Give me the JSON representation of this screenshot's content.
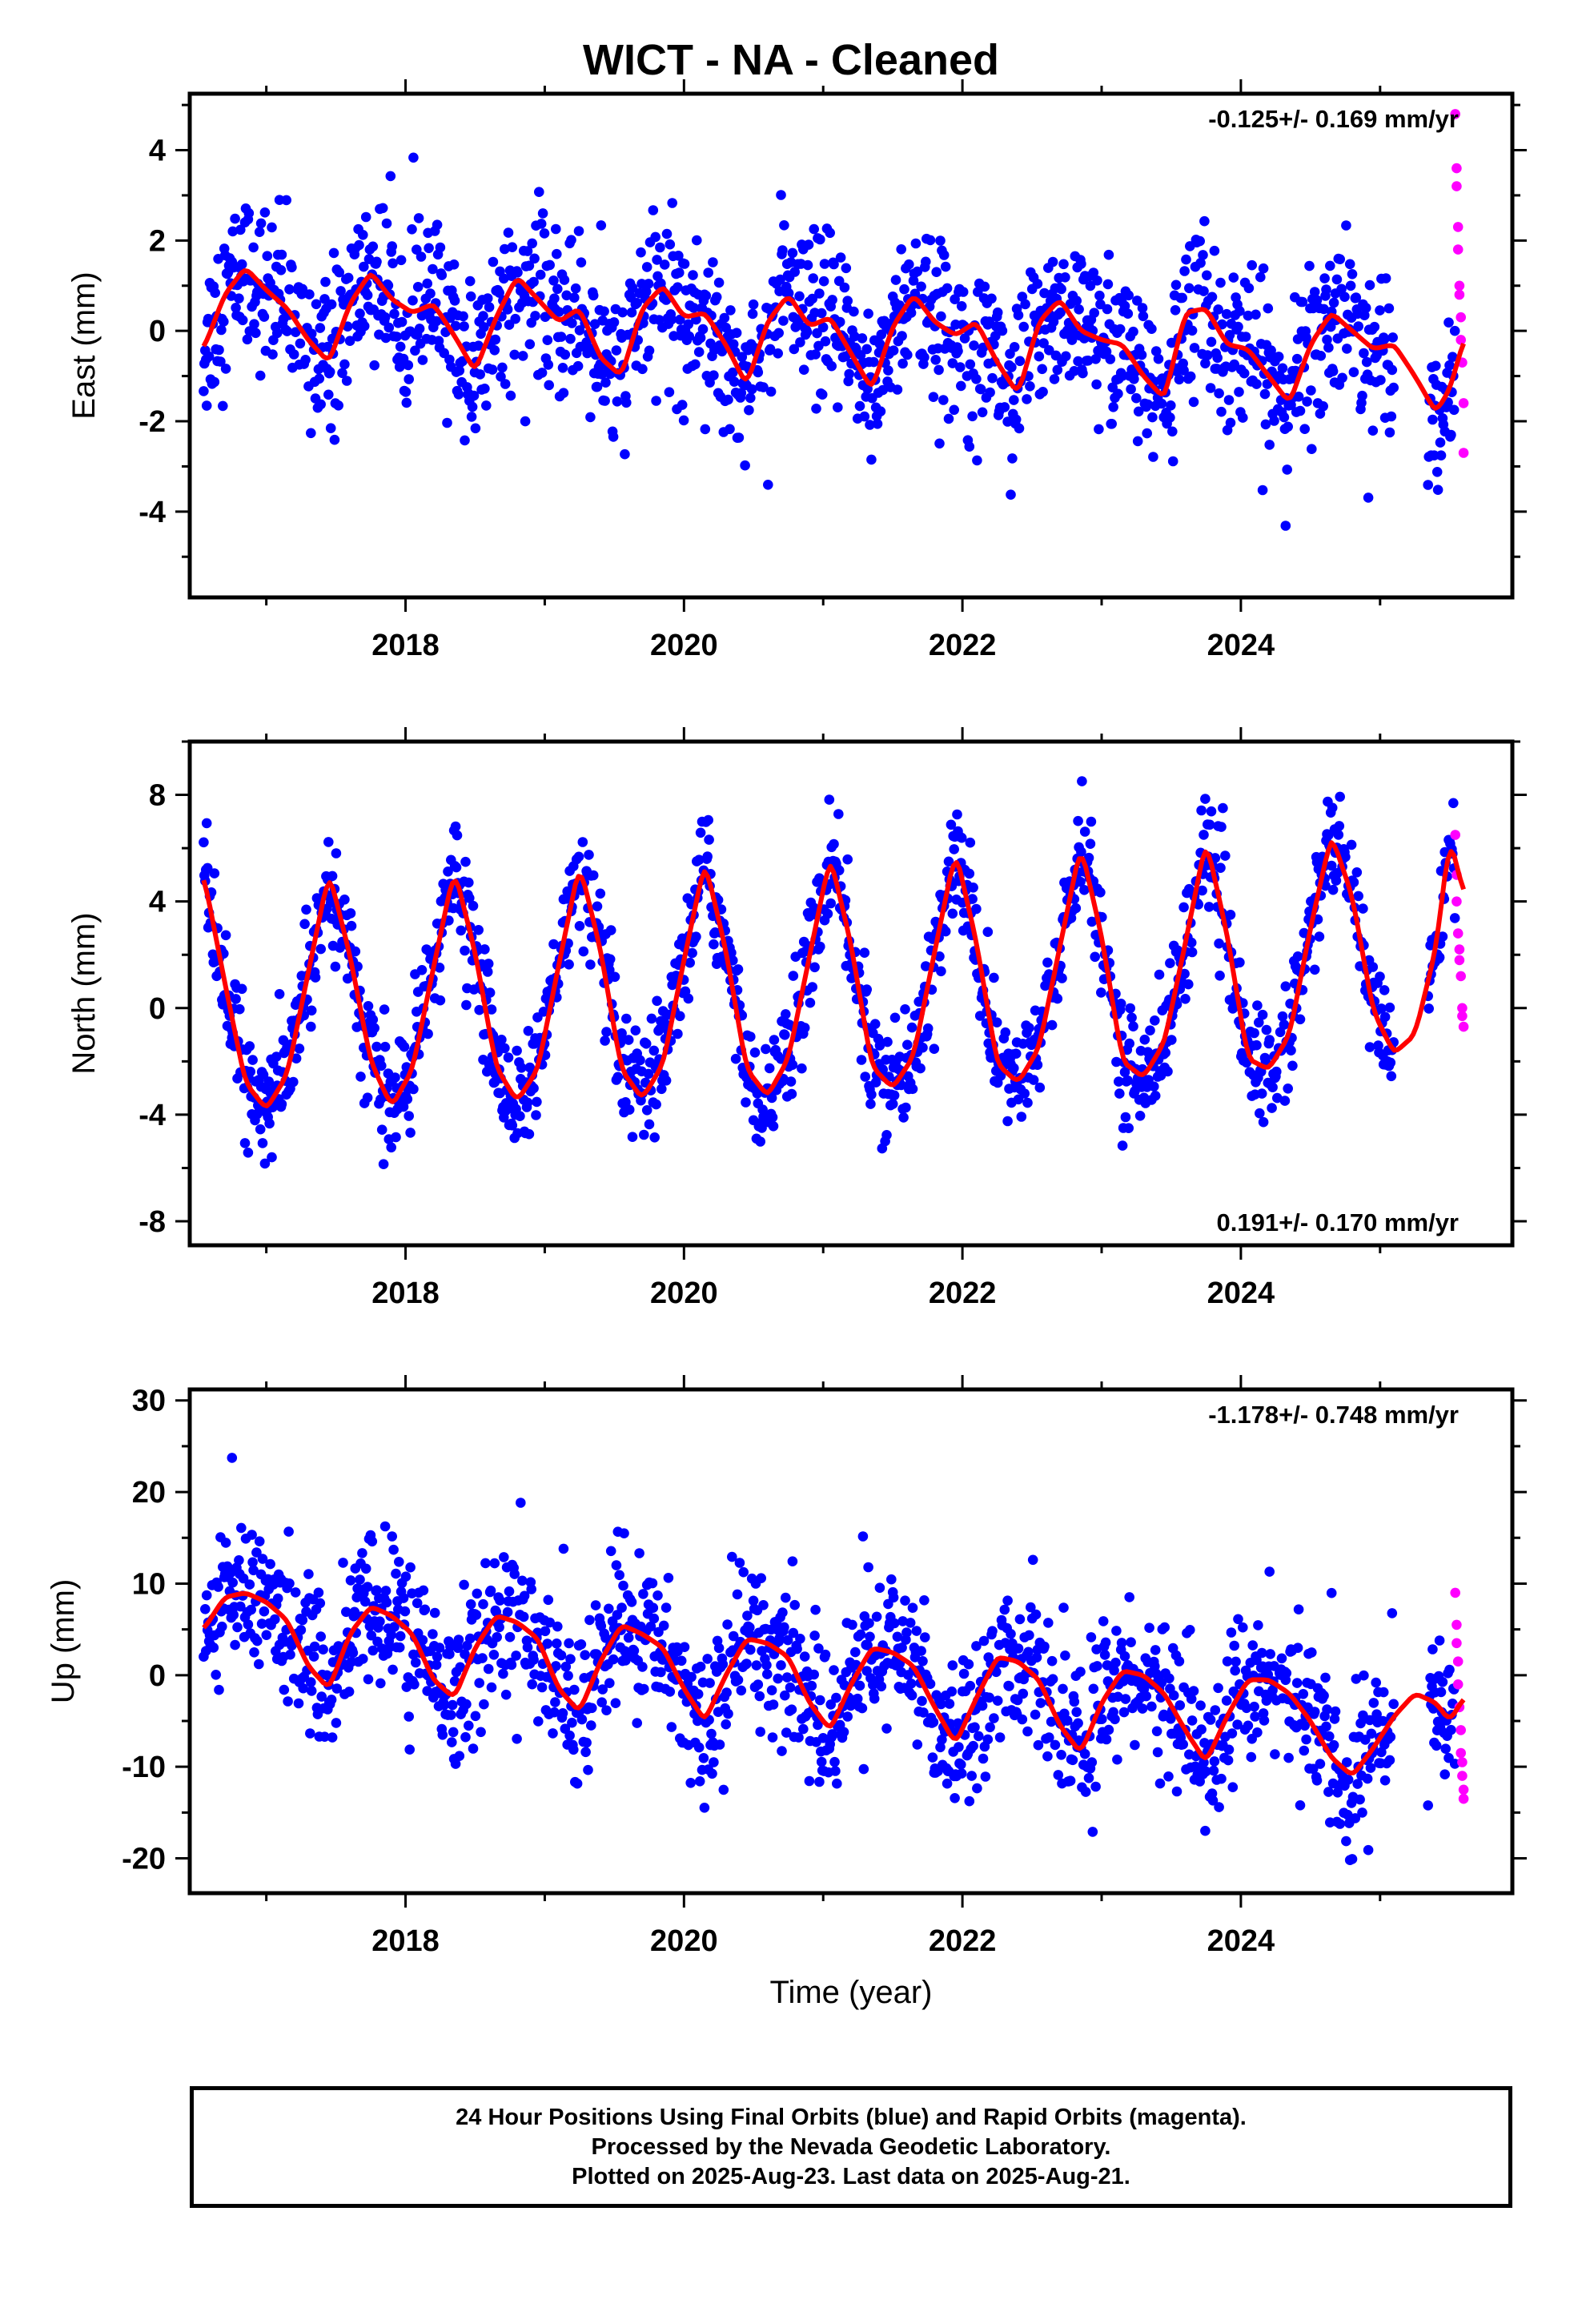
{
  "title": "WICT  - NA - Cleaned",
  "colors": {
    "final_orbits": "#0000ff",
    "rapid_orbits": "#ff00ff",
    "model_fit": "#ff0000",
    "frame": "#000000"
  },
  "caption": {
    "line1": "24 Hour Positions Using Final Orbits (blue) and Rapid Orbits (magenta).",
    "line2": "Processed by the Nevada Geodetic Laboratory.",
    "line3": "Plotted on 2025-Aug-23. Last data on 2025-Aug-21."
  },
  "chart_data": [
    {
      "type": "scatter",
      "component": "east",
      "ylabel": "East (mm)",
      "xlabel": "",
      "xlim": [
        2016.45,
        2025.95
      ],
      "ylim": [
        -5.9,
        5.25
      ],
      "x_ticks": [
        "2018",
        "2020",
        "2022",
        "2024"
      ],
      "y_ticks": [
        "4",
        "2",
        "0",
        "-2",
        "-4"
      ],
      "rate_label": "-0.125+/- 0.169 mm/yr",
      "rate_label_position": "top-right",
      "trend_mm_per_yr": -0.125,
      "series": [
        {
          "name": "fit",
          "style": "red-line",
          "x": [
            2016.55,
            2016.7,
            2016.85,
            2017.0,
            2017.15,
            2017.3,
            2017.45,
            2017.6,
            2017.75,
            2017.9,
            2018.05,
            2018.2,
            2018.35,
            2018.5,
            2018.65,
            2018.8,
            2018.95,
            2019.1,
            2019.25,
            2019.4,
            2019.55,
            2019.7,
            2019.85,
            2020.0,
            2020.15,
            2020.3,
            2020.45,
            2020.6,
            2020.75,
            2020.9,
            2021.05,
            2021.2,
            2021.35,
            2021.5,
            2021.65,
            2021.8,
            2021.95,
            2022.1,
            2022.25,
            2022.4,
            2022.55,
            2022.7,
            2022.85,
            2023.0,
            2023.15,
            2023.3,
            2023.45,
            2023.6,
            2023.75,
            2023.9,
            2024.05,
            2024.2,
            2024.35,
            2024.5,
            2024.65,
            2024.8,
            2024.95,
            2025.1,
            2025.25,
            2025.4,
            2025.5,
            2025.6
          ],
          "y": [
            -0.4,
            0.8,
            1.4,
            0.9,
            0.5,
            -0.2,
            -0.7,
            0.6,
            1.3,
            0.7,
            0.4,
            0.6,
            -0.1,
            -0.9,
            0.3,
            1.2,
            0.7,
            0.2,
            0.5,
            -0.6,
            -1.0,
            0.5,
            1.0,
            0.3,
            0.4,
            -0.3,
            -1.2,
            0.2,
            0.8,
            0.1,
            0.3,
            -0.5,
            -1.3,
            0.1,
            0.8,
            0.2,
            -0.1,
            0.2,
            -0.7,
            -1.4,
            0.2,
            0.7,
            0.0,
            -0.2,
            -0.3,
            -1.0,
            -1.5,
            0.4,
            0.5,
            -0.3,
            -0.4,
            -1.0,
            -1.6,
            -0.3,
            0.4,
            0.0,
            -0.4,
            -0.3,
            -1.0,
            -1.8,
            -1.3,
            -0.2
          ]
        },
        {
          "name": "rapid",
          "style": "magenta-dots",
          "x": [
            2025.54,
            2025.55,
            2025.55,
            2025.56,
            2025.56,
            2025.57,
            2025.57,
            2025.58,
            2025.58,
            2025.59,
            2025.6,
            2025.6
          ],
          "y": [
            4.8,
            3.6,
            3.2,
            2.3,
            1.8,
            1.0,
            0.8,
            0.3,
            -0.2,
            -0.7,
            -1.6,
            -2.7
          ]
        }
      ]
    },
    {
      "type": "scatter",
      "component": "north",
      "ylabel": "North (mm)",
      "xlabel": "",
      "xlim": [
        2016.45,
        2025.95
      ],
      "ylim": [
        -8.9,
        10.0
      ],
      "x_ticks": [
        "2018",
        "2020",
        "2022",
        "2024"
      ],
      "y_ticks": [
        "8",
        "4",
        "0",
        "-4",
        "-8"
      ],
      "rate_label": "0.191+/- 0.170 mm/yr",
      "rate_label_position": "bottom-right",
      "trend_mm_per_yr": 0.191,
      "series": [
        {
          "name": "fit",
          "style": "red-line",
          "x": [
            2016.55,
            2016.7,
            2016.85,
            2017.0,
            2017.15,
            2017.3,
            2017.45,
            2017.6,
            2017.75,
            2017.9,
            2018.05,
            2018.2,
            2018.35,
            2018.5,
            2018.65,
            2018.8,
            2018.95,
            2019.1,
            2019.25,
            2019.4,
            2019.55,
            2019.7,
            2019.85,
            2020.0,
            2020.15,
            2020.3,
            2020.45,
            2020.6,
            2020.75,
            2020.9,
            2021.05,
            2021.2,
            2021.35,
            2021.5,
            2021.65,
            2021.8,
            2021.95,
            2022.1,
            2022.25,
            2022.4,
            2022.55,
            2022.7,
            2022.85,
            2023.0,
            2023.15,
            2023.3,
            2023.45,
            2023.6,
            2023.75,
            2023.9,
            2024.05,
            2024.2,
            2024.35,
            2024.5,
            2024.65,
            2024.8,
            2024.95,
            2025.1,
            2025.25,
            2025.4,
            2025.5,
            2025.6
          ],
          "y": [
            5.0,
            1.0,
            -2.8,
            -3.8,
            -2.5,
            1.3,
            5.1,
            2.0,
            -2.0,
            -3.7,
            -2.3,
            1.5,
            5.2,
            2.1,
            -2.2,
            -3.5,
            -2.3,
            1.6,
            5.4,
            2.2,
            -2.3,
            -3.4,
            -2.1,
            1.8,
            5.5,
            2.2,
            -2.3,
            -3.3,
            -1.9,
            1.9,
            5.7,
            2.4,
            -2.2,
            -3.0,
            -1.8,
            2.1,
            5.9,
            2.5,
            -2.1,
            -2.8,
            -1.5,
            2.3,
            6.1,
            2.7,
            -2.0,
            -2.6,
            -1.3,
            2.4,
            6.3,
            2.8,
            -1.9,
            -2.3,
            -1.0,
            3.0,
            6.5,
            4.2,
            -0.1,
            -1.7,
            -1.0,
            2.2,
            6.4,
            4.3
          ]
        },
        {
          "name": "rapid",
          "style": "magenta-dots",
          "x": [
            2025.54,
            2025.55,
            2025.55,
            2025.56,
            2025.57,
            2025.57,
            2025.58,
            2025.59,
            2025.59,
            2025.6
          ],
          "y": [
            6.5,
            5.0,
            4.0,
            2.8,
            2.2,
            1.8,
            1.2,
            0.0,
            -0.3,
            -0.7
          ]
        }
      ]
    },
    {
      "type": "scatter",
      "component": "up",
      "ylabel": "Up (mm)",
      "xlabel": "Time (year)",
      "xlim": [
        2016.45,
        2025.95
      ],
      "ylim": [
        -23.8,
        31.2
      ],
      "x_ticks": [
        "2018",
        "2020",
        "2022",
        "2024"
      ],
      "y_ticks": [
        "30",
        "20",
        "10",
        "0",
        "-10",
        "-20"
      ],
      "rate_label": "-1.178+/- 0.748 mm/yr",
      "rate_label_position": "top-right",
      "trend_mm_per_yr": -1.178,
      "series": [
        {
          "name": "fit",
          "style": "red-line",
          "x": [
            2016.55,
            2016.7,
            2016.85,
            2017.0,
            2017.15,
            2017.3,
            2017.45,
            2017.6,
            2017.75,
            2017.9,
            2018.05,
            2018.2,
            2018.35,
            2018.5,
            2018.65,
            2018.8,
            2018.95,
            2019.1,
            2019.25,
            2019.4,
            2019.55,
            2019.7,
            2019.85,
            2020.0,
            2020.15,
            2020.3,
            2020.45,
            2020.6,
            2020.75,
            2020.9,
            2021.05,
            2021.2,
            2021.35,
            2021.5,
            2021.65,
            2021.8,
            2021.95,
            2022.1,
            2022.25,
            2022.4,
            2022.55,
            2022.7,
            2022.85,
            2023.0,
            2023.15,
            2023.3,
            2023.45,
            2023.6,
            2023.75,
            2023.9,
            2024.05,
            2024.2,
            2024.35,
            2024.5,
            2024.65,
            2024.8,
            2024.95,
            2025.1,
            2025.25,
            2025.4,
            2025.5,
            2025.6
          ],
          "y": [
            5.0,
            8.5,
            9.0,
            8.0,
            6.0,
            1.0,
            -1.5,
            4.5,
            7.5,
            6.5,
            4.5,
            -0.5,
            -2.5,
            3.0,
            6.5,
            5.8,
            4.0,
            -1.5,
            -4.0,
            1.5,
            5.5,
            4.5,
            3.0,
            -1.5,
            -5.0,
            0.0,
            4.0,
            3.5,
            2.0,
            -3.0,
            -6.0,
            -1.0,
            3.0,
            2.5,
            1.0,
            -3.5,
            -7.5,
            -2.5,
            2.0,
            1.5,
            -0.5,
            -5.5,
            -8.5,
            -3.0,
            0.5,
            0.0,
            -2.0,
            -6.0,
            -9.5,
            -4.5,
            -0.5,
            -0.5,
            -2.0,
            -5.0,
            -9.0,
            -11.0,
            -8.0,
            -4.5,
            -2.0,
            -3.0,
            -5.0,
            -2.5
          ]
        },
        {
          "name": "rapid",
          "style": "magenta-dots",
          "x": [
            2025.54,
            2025.55,
            2025.55,
            2025.56,
            2025.56,
            2025.57,
            2025.58,
            2025.58,
            2025.59,
            2025.59,
            2025.6,
            2025.6
          ],
          "y": [
            9.0,
            5.5,
            3.5,
            1.5,
            -1.0,
            -3.5,
            -6.0,
            -8.5,
            -9.5,
            -11.0,
            -12.5,
            -13.5
          ]
        }
      ]
    }
  ]
}
